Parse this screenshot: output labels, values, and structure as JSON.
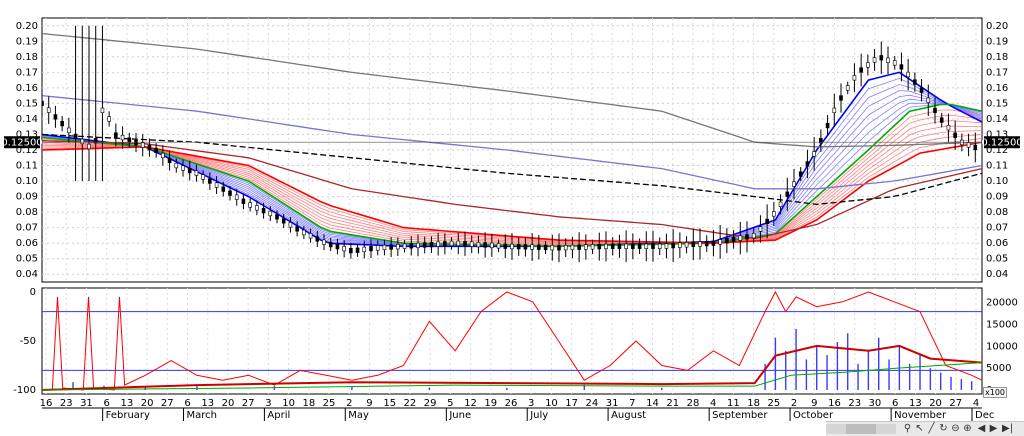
{
  "chart_data": [
    {
      "type": "candlestick",
      "title": "",
      "yticks": [
        "0.20",
        "0.19",
        "0.18",
        "0.17",
        "0.16",
        "0.15",
        "0.14",
        "0.13",
        "0.12",
        "0.11",
        "0.10",
        "0.09",
        "0.08",
        "0.07",
        "0.06",
        "0.05",
        "0.04"
      ],
      "ylim": [
        0.035,
        0.205
      ],
      "current_price_label": "0.12500",
      "current_price": 0.125,
      "price_path": [
        [
          0,
          0.15
        ],
        [
          6,
          0.13
        ],
        [
          10,
          0.12
        ],
        [
          12,
          0.15
        ],
        [
          14,
          0.13
        ],
        [
          18,
          0.125
        ],
        [
          22,
          0.12
        ],
        [
          26,
          0.11
        ],
        [
          30,
          0.105
        ],
        [
          35,
          0.095
        ],
        [
          40,
          0.085
        ],
        [
          45,
          0.078
        ],
        [
          50,
          0.068
        ],
        [
          55,
          0.06
        ],
        [
          60,
          0.055
        ],
        [
          65,
          0.057
        ],
        [
          70,
          0.058
        ],
        [
          80,
          0.06
        ],
        [
          90,
          0.058
        ],
        [
          100,
          0.057
        ],
        [
          110,
          0.058
        ],
        [
          120,
          0.058
        ],
        [
          130,
          0.06
        ],
        [
          138,
          0.065
        ],
        [
          142,
          0.08
        ],
        [
          146,
          0.1
        ],
        [
          150,
          0.12
        ],
        [
          154,
          0.15
        ],
        [
          158,
          0.17
        ],
        [
          162,
          0.18
        ],
        [
          166,
          0.175
        ],
        [
          170,
          0.16
        ],
        [
          174,
          0.14
        ],
        [
          178,
          0.125
        ],
        [
          182,
          0.12
        ]
      ],
      "moving_averages": [
        {
          "color": "#0000ff",
          "path": [
            [
              0,
              0.13
            ],
            [
              20,
              0.122
            ],
            [
              40,
              0.09
            ],
            [
              55,
              0.06
            ],
            [
              70,
              0.058
            ],
            [
              100,
              0.058
            ],
            [
              130,
              0.061
            ],
            [
              142,
              0.075
            ],
            [
              150,
              0.12
            ],
            [
              160,
              0.165
            ],
            [
              166,
              0.17
            ],
            [
              175,
              0.15
            ],
            [
              182,
              0.138
            ]
          ]
        },
        {
          "color": "#00aa00",
          "path": [
            [
              0,
              0.128
            ],
            [
              20,
              0.122
            ],
            [
              40,
              0.1
            ],
            [
              55,
              0.068
            ],
            [
              70,
              0.06
            ],
            [
              100,
              0.058
            ],
            [
              130,
              0.06
            ],
            [
              142,
              0.066
            ],
            [
              150,
              0.09
            ],
            [
              160,
              0.12
            ],
            [
              168,
              0.145
            ],
            [
              175,
              0.15
            ],
            [
              182,
              0.145
            ]
          ]
        },
        {
          "color": "#ff0000",
          "path": [
            [
              0,
              0.12
            ],
            [
              20,
              0.122
            ],
            [
              40,
              0.11
            ],
            [
              55,
              0.085
            ],
            [
              70,
              0.07
            ],
            [
              100,
              0.062
            ],
            [
              130,
              0.06
            ],
            [
              142,
              0.062
            ],
            [
              150,
              0.075
            ],
            [
              160,
              0.1
            ],
            [
              170,
              0.118
            ],
            [
              182,
              0.125
            ]
          ]
        },
        {
          "color": "#a52a2a",
          "path": [
            [
              0,
              0.126
            ],
            [
              20,
              0.124
            ],
            [
              40,
              0.115
            ],
            [
              60,
              0.095
            ],
            [
              80,
              0.085
            ],
            [
              100,
              0.077
            ],
            [
              120,
              0.072
            ],
            [
              138,
              0.063
            ],
            [
              150,
              0.072
            ],
            [
              165,
              0.095
            ],
            [
              182,
              0.108
            ]
          ]
        },
        {
          "color": "#000000",
          "path": [
            [
              0,
              0.13
            ],
            [
              30,
              0.125
            ],
            [
              60,
              0.115
            ],
            [
              90,
              0.105
            ],
            [
              120,
              0.097
            ],
            [
              138,
              0.09
            ],
            [
              150,
              0.085
            ],
            [
              165,
              0.09
            ],
            [
              182,
              0.105
            ]
          ]
        },
        {
          "color": "#7777cc",
          "path": [
            [
              0,
              0.155
            ],
            [
              30,
              0.145
            ],
            [
              60,
              0.13
            ],
            [
              90,
              0.12
            ],
            [
              120,
              0.108
            ],
            [
              138,
              0.095
            ],
            [
              150,
              0.095
            ],
            [
              165,
              0.1
            ],
            [
              182,
              0.11
            ]
          ]
        },
        {
          "color": "#777777",
          "path": [
            [
              0,
              0.195
            ],
            [
              30,
              0.185
            ],
            [
              60,
              0.17
            ],
            [
              90,
              0.158
            ],
            [
              120,
              0.145
            ],
            [
              138,
              0.125
            ],
            [
              150,
              0.122
            ],
            [
              165,
              0.123
            ],
            [
              182,
              0.125
            ]
          ]
        }
      ]
    },
    {
      "type": "line",
      "yticks_left": [
        "0",
        "-50",
        "-100"
      ],
      "ylim_left": [
        -100,
        0
      ],
      "yticks_right": [
        "20000",
        "15000",
        "10000",
        "5000",
        "0"
      ],
      "ylim_right": [
        0,
        22000
      ],
      "scale_label": "x100",
      "hlines_left": [
        -20,
        -80
      ],
      "volume_bars": [
        [
          6,
          1800
        ],
        [
          12,
          1000
        ],
        [
          20,
          800
        ],
        [
          30,
          1200
        ],
        [
          45,
          900
        ],
        [
          60,
          700
        ],
        [
          75,
          600
        ],
        [
          90,
          500
        ],
        [
          105,
          1200
        ],
        [
          120,
          500
        ],
        [
          140,
          6000
        ],
        [
          142,
          12000
        ],
        [
          144,
          9000
        ],
        [
          146,
          14000
        ],
        [
          148,
          7000
        ],
        [
          150,
          10000
        ],
        [
          152,
          8000
        ],
        [
          154,
          11000
        ],
        [
          156,
          13000
        ],
        [
          158,
          6000
        ],
        [
          160,
          9000
        ],
        [
          162,
          12000
        ],
        [
          164,
          7000
        ],
        [
          166,
          10000
        ],
        [
          168,
          6000
        ],
        [
          170,
          8000
        ],
        [
          172,
          5000
        ],
        [
          174,
          4000
        ],
        [
          176,
          3000
        ],
        [
          178,
          2500
        ],
        [
          180,
          2000
        ]
      ],
      "series": [
        {
          "color": "#ff0000",
          "path": [
            [
              0,
              -100
            ],
            [
              2,
              -100
            ],
            [
              3,
              -5
            ],
            [
              4,
              -98
            ],
            [
              8,
              -100
            ],
            [
              9,
              -5
            ],
            [
              10,
              -98
            ],
            [
              14,
              -100
            ],
            [
              15,
              -5
            ],
            [
              16,
              -95
            ],
            [
              20,
              -85
            ],
            [
              25,
              -70
            ],
            [
              30,
              -85
            ],
            [
              35,
              -90
            ],
            [
              40,
              -85
            ],
            [
              45,
              -95
            ],
            [
              50,
              -80
            ],
            [
              55,
              -85
            ],
            [
              60,
              -90
            ],
            [
              65,
              -85
            ],
            [
              70,
              -75
            ],
            [
              75,
              -30
            ],
            [
              80,
              -60
            ],
            [
              85,
              -20
            ],
            [
              90,
              0
            ],
            [
              95,
              -10
            ],
            [
              100,
              -50
            ],
            [
              105,
              -90
            ],
            [
              110,
              -75
            ],
            [
              115,
              -50
            ],
            [
              120,
              -75
            ],
            [
              125,
              -80
            ],
            [
              130,
              -60
            ],
            [
              135,
              -75
            ],
            [
              140,
              -20
            ],
            [
              142,
              0
            ],
            [
              144,
              -20
            ],
            [
              146,
              -5
            ],
            [
              150,
              -15
            ],
            [
              155,
              -10
            ],
            [
              160,
              0
            ],
            [
              165,
              -10
            ],
            [
              170,
              -20
            ],
            [
              175,
              -75
            ],
            [
              180,
              -85
            ],
            [
              182,
              -90
            ]
          ]
        },
        {
          "color": "#cc0000",
          "width": 2,
          "path": [
            [
              0,
              -100
            ],
            [
              30,
              -95
            ],
            [
              60,
              -92
            ],
            [
              90,
              -93
            ],
            [
              120,
              -94
            ],
            [
              138,
              -93
            ],
            [
              142,
              -65
            ],
            [
              150,
              -55
            ],
            [
              160,
              -60
            ],
            [
              166,
              -55
            ],
            [
              172,
              -68
            ],
            [
              182,
              -72
            ]
          ]
        },
        {
          "color": "#00aa00",
          "path": [
            [
              0,
              -100
            ],
            [
              40,
              -98
            ],
            [
              80,
              -95
            ],
            [
              120,
              -96
            ],
            [
              138,
              -96
            ],
            [
              145,
              -85
            ],
            [
              155,
              -82
            ],
            [
              165,
              -78
            ],
            [
              182,
              -72
            ]
          ]
        }
      ],
      "date_ticks": [
        "16",
        "23",
        "31",
        "6",
        "13",
        "20",
        "27",
        "6",
        "13",
        "20",
        "27",
        "3",
        "10",
        "18",
        "25",
        "2",
        "9",
        "15",
        "22",
        "29",
        "5",
        "12",
        "19",
        "26",
        "3",
        "10",
        "17",
        "24",
        "31",
        "7",
        "14",
        "21",
        "28",
        "4",
        "11",
        "18",
        "25",
        "2",
        "9",
        "16",
        "23",
        "30",
        "6",
        "13",
        "20",
        "27",
        "4"
      ],
      "months": [
        "February",
        "March",
        "April",
        "May",
        "June",
        "July",
        "August",
        "September",
        "October",
        "November",
        "Dec"
      ]
    }
  ]
}
